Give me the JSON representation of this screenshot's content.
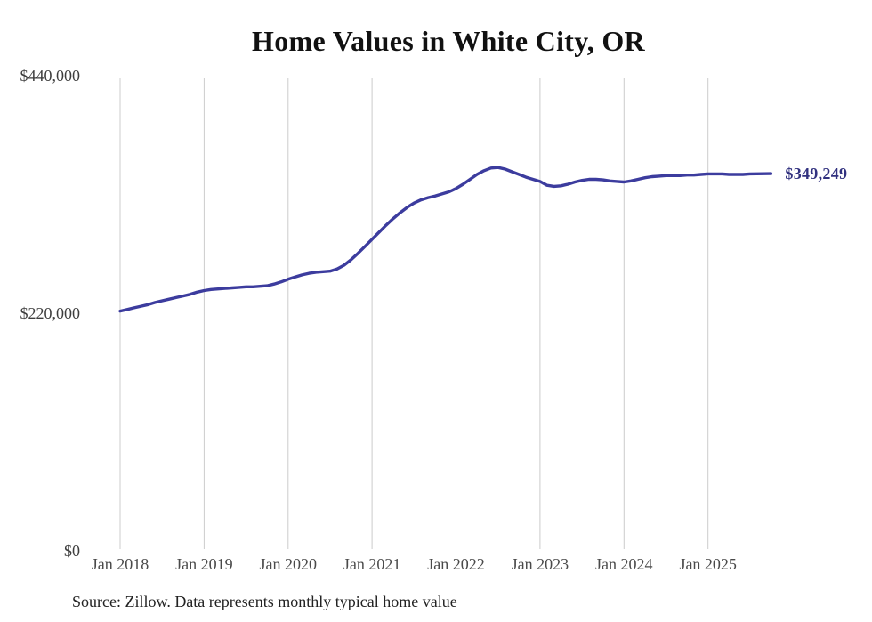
{
  "title": "Home Values in White City, OR",
  "source_note": "Source: Zillow. Data represents monthly typical home value",
  "end_label": "$349,249",
  "colors": {
    "line": "#3c3c9e",
    "end_label_text": "#31317f",
    "gridline": "#cccccc",
    "y_axis_text": "#3d3d3d",
    "x_axis_text": "#4a4a4a",
    "title_text": "#111111",
    "source_text": "#222222",
    "background": "#ffffff"
  },
  "chart_data": {
    "type": "line",
    "title": "Home Values in White City, OR",
    "series_name": "Monthly typical home value",
    "legend": "none",
    "grid": "vertical-only",
    "ylim": [
      0,
      440000
    ],
    "y_ticks": [
      {
        "label": "$0",
        "value": 0
      },
      {
        "label": "$220,000",
        "value": 220000
      },
      {
        "label": "$440,000",
        "value": 440000
      }
    ],
    "x_tick_labels": [
      "Jan 2018",
      "Jan 2019",
      "Jan 2020",
      "Jan 2021",
      "Jan 2022",
      "Jan 2023",
      "Jan 2024",
      "Jan 2025"
    ],
    "x_tick_month_indices": [
      0,
      12,
      24,
      36,
      48,
      60,
      72,
      84
    ],
    "end_label": "$349,249",
    "last_value": 349249,
    "months": [
      "2018-01",
      "2018-02",
      "2018-03",
      "2018-04",
      "2018-05",
      "2018-06",
      "2018-07",
      "2018-08",
      "2018-09",
      "2018-10",
      "2018-11",
      "2018-12",
      "2019-01",
      "2019-02",
      "2019-03",
      "2019-04",
      "2019-05",
      "2019-06",
      "2019-07",
      "2019-08",
      "2019-09",
      "2019-10",
      "2019-11",
      "2019-12",
      "2020-01",
      "2020-02",
      "2020-03",
      "2020-04",
      "2020-05",
      "2020-06",
      "2020-07",
      "2020-08",
      "2020-09",
      "2020-10",
      "2020-11",
      "2020-12",
      "2021-01",
      "2021-02",
      "2021-03",
      "2021-04",
      "2021-05",
      "2021-06",
      "2021-07",
      "2021-08",
      "2021-09",
      "2021-10",
      "2021-11",
      "2021-12",
      "2022-01",
      "2022-02",
      "2022-03",
      "2022-04",
      "2022-05",
      "2022-06",
      "2022-07",
      "2022-08",
      "2022-09",
      "2022-10",
      "2022-11",
      "2022-12",
      "2023-01",
      "2023-02",
      "2023-03",
      "2023-04",
      "2023-05",
      "2023-06",
      "2023-07",
      "2023-08",
      "2023-09",
      "2023-10",
      "2023-11",
      "2023-12",
      "2024-01",
      "2024-02",
      "2024-03",
      "2024-04",
      "2024-05",
      "2024-06",
      "2024-07",
      "2024-08",
      "2024-09",
      "2024-10",
      "2024-11",
      "2024-12",
      "2025-01",
      "2025-02",
      "2025-03",
      "2025-04",
      "2025-05",
      "2025-06",
      "2025-07",
      "2025-08",
      "2025-09",
      "2025-10"
    ],
    "values": [
      222000,
      223500,
      225000,
      226500,
      228000,
      230000,
      231500,
      233000,
      234500,
      236000,
      237500,
      239500,
      241000,
      242000,
      242500,
      243000,
      243500,
      244000,
      244500,
      244500,
      245000,
      245500,
      247000,
      249000,
      251500,
      253500,
      255500,
      257000,
      258000,
      258500,
      259000,
      261000,
      264500,
      269500,
      275500,
      282000,
      288500,
      295000,
      301500,
      307500,
      313000,
      318000,
      322000,
      325000,
      327000,
      328500,
      330500,
      332500,
      335500,
      339500,
      344000,
      348500,
      352000,
      354500,
      355000,
      353500,
      351000,
      348500,
      346000,
      344000,
      342000,
      338500,
      337500,
      338000,
      339500,
      341500,
      343000,
      344000,
      344000,
      343500,
      342500,
      342000,
      341500,
      342500,
      344000,
      345500,
      346500,
      347000,
      347500,
      347500,
      347500,
      348000,
      348000,
      348500,
      349000,
      349000,
      349000,
      348500,
      348500,
      348500,
      349000,
      349100,
      349200,
      349249
    ]
  }
}
